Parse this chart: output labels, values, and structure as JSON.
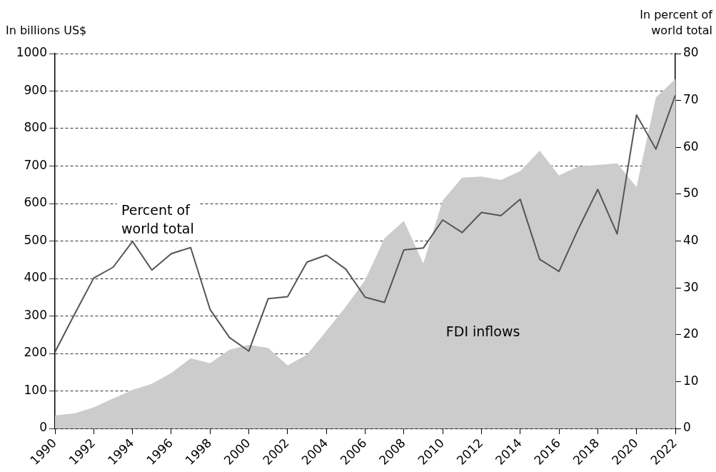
{
  "chart_data": {
    "type": "area",
    "ylabel": "In billions US$",
    "y2label": "In percent of world total",
    "x": [
      1990,
      1991,
      1992,
      1993,
      1994,
      1995,
      1996,
      1997,
      1998,
      1999,
      2000,
      2001,
      2002,
      2003,
      2004,
      2005,
      2006,
      2007,
      2008,
      2009,
      2010,
      2011,
      2012,
      2013,
      2014,
      2015,
      2016,
      2017,
      2018,
      2019,
      2020,
      2021,
      2022
    ],
    "series": [
      {
        "name": "FDI inflows",
        "color": "#cccccc",
        "values": [
          35,
          40,
          56,
          80,
          103,
          119,
          148,
          187,
          174,
          210,
          223,
          215,
          168,
          197,
          260,
          325,
          396,
          507,
          554,
          440,
          608,
          669,
          672,
          663,
          686,
          741,
          675,
          699,
          703,
          707,
          644,
          883,
          932
        ]
      },
      {
        "name": "Percent of world total",
        "type": "line",
        "axis": "y2",
        "color": "#555555",
        "values": [
          16.3,
          24.3,
          32.1,
          34.4,
          39.9,
          33.8,
          37.3,
          38.6,
          25.4,
          19.4,
          16.5,
          27.7,
          28.1,
          35.5,
          37.0,
          34.0,
          28.0,
          26.9,
          38.1,
          38.5,
          44.5,
          41.8,
          46.1,
          45.4,
          48.9,
          36.1,
          33.5,
          42.6,
          51.0,
          41.5,
          66.9,
          59.6,
          71.1
        ]
      }
    ],
    "xlim": [
      1990,
      2022
    ],
    "xticks": [
      1990,
      1992,
      1994,
      1996,
      1998,
      2000,
      2002,
      2004,
      2006,
      2008,
      2010,
      2012,
      2014,
      2016,
      2018,
      2020,
      2022
    ],
    "ylim": [
      0,
      1000
    ],
    "yticks": [
      0,
      100,
      200,
      300,
      400,
      500,
      600,
      700,
      800,
      900,
      1000
    ],
    "y2lim": [
      0,
      80
    ],
    "y2ticks": [
      0,
      10,
      20,
      30,
      40,
      50,
      60,
      70,
      80
    ],
    "grid": "y",
    "legend": false,
    "marker": "none",
    "line_style": "solid"
  }
}
